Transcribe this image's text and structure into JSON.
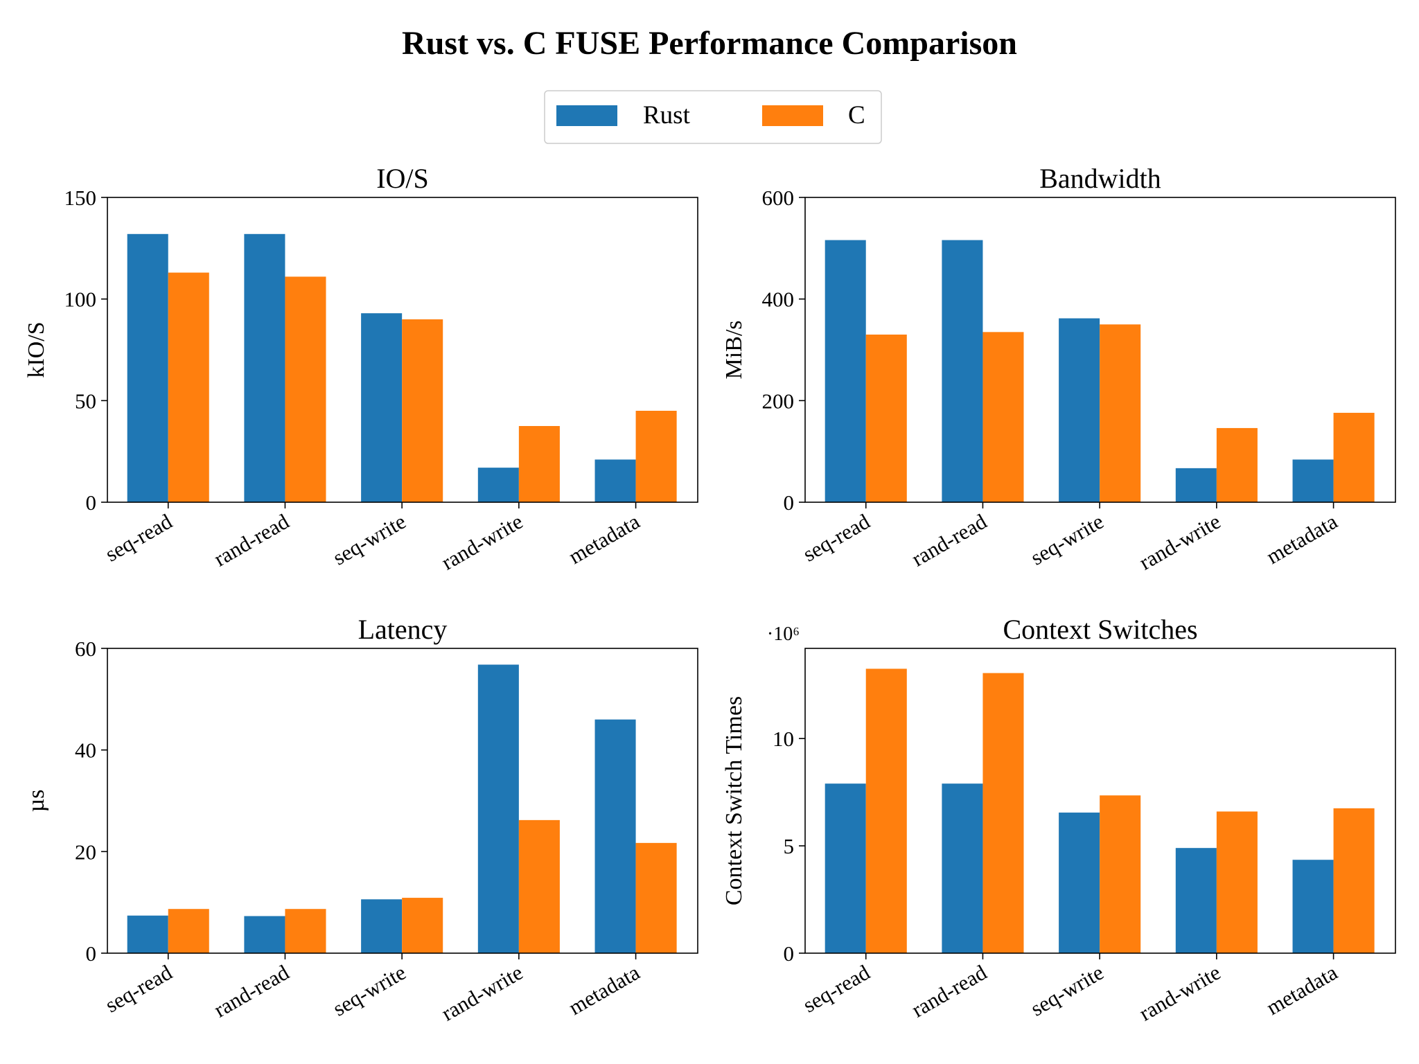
{
  "figure": {
    "title": "Rust vs. C FUSE Performance Comparison"
  },
  "legend": {
    "position": "top-center",
    "entries": [
      {
        "label": "Rust",
        "color": "#1f77b4"
      },
      {
        "label": "C",
        "color": "#ff7f0e"
      }
    ]
  },
  "chart_data": [
    {
      "type": "bar",
      "title": "IO/S",
      "xlabel": "",
      "ylabel": "kIO/S",
      "ylim": [
        0,
        150
      ],
      "yticks": [
        0,
        50,
        100,
        150
      ],
      "ytick_labels": [
        "0",
        "50",
        "100",
        "150"
      ],
      "offset_text": "",
      "grid": false,
      "categories": [
        "seq-read",
        "rand-read",
        "seq-write",
        "rand-write",
        "metadata"
      ],
      "series": [
        {
          "name": "Rust",
          "color": "#1f77b4",
          "values": [
            132,
            132,
            93,
            17,
            21
          ]
        },
        {
          "name": "C",
          "color": "#ff7f0e",
          "values": [
            113,
            111,
            90,
            37.5,
            45
          ]
        }
      ]
    },
    {
      "type": "bar",
      "title": "Bandwidth",
      "xlabel": "",
      "ylabel": "MiB/s",
      "ylim": [
        0,
        600
      ],
      "yticks": [
        0,
        200,
        400,
        600
      ],
      "ytick_labels": [
        "0",
        "200",
        "400",
        "600"
      ],
      "offset_text": "",
      "grid": false,
      "categories": [
        "seq-read",
        "rand-read",
        "seq-write",
        "rand-write",
        "metadata"
      ],
      "series": [
        {
          "name": "Rust",
          "color": "#1f77b4",
          "values": [
            516,
            516,
            362,
            67,
            84
          ]
        },
        {
          "name": "C",
          "color": "#ff7f0e",
          "values": [
            330,
            335,
            350,
            146,
            176
          ]
        }
      ]
    },
    {
      "type": "bar",
      "title": "Latency",
      "xlabel": "",
      "ylabel": "µs",
      "ylim": [
        0,
        60
      ],
      "yticks": [
        0,
        20,
        40,
        60
      ],
      "ytick_labels": [
        "0",
        "20",
        "40",
        "60"
      ],
      "offset_text": "",
      "grid": false,
      "categories": [
        "seq-read",
        "rand-read",
        "seq-write",
        "rand-write",
        "metadata"
      ],
      "series": [
        {
          "name": "Rust",
          "color": "#1f77b4",
          "values": [
            7.4,
            7.3,
            10.6,
            56.8,
            46
          ]
        },
        {
          "name": "C",
          "color": "#ff7f0e",
          "values": [
            8.7,
            8.7,
            10.9,
            26.2,
            21.7
          ]
        }
      ]
    },
    {
      "type": "bar",
      "title": "Context Switches",
      "xlabel": "",
      "ylabel": "Context Switch Times",
      "ylim": [
        0,
        14200000
      ],
      "yticks": [
        0,
        5000000,
        10000000
      ],
      "ytick_labels": [
        "0",
        "5",
        "10"
      ],
      "offset_text": "·10⁶",
      "grid": false,
      "categories": [
        "seq-read",
        "rand-read",
        "seq-write",
        "rand-write",
        "metadata"
      ],
      "series": [
        {
          "name": "Rust",
          "color": "#1f77b4",
          "values": [
            7900000,
            7900000,
            6550000,
            4900000,
            4350000
          ]
        },
        {
          "name": "C",
          "color": "#ff7f0e",
          "values": [
            13250000,
            13050000,
            7350000,
            6600000,
            6750000
          ]
        }
      ]
    }
  ]
}
